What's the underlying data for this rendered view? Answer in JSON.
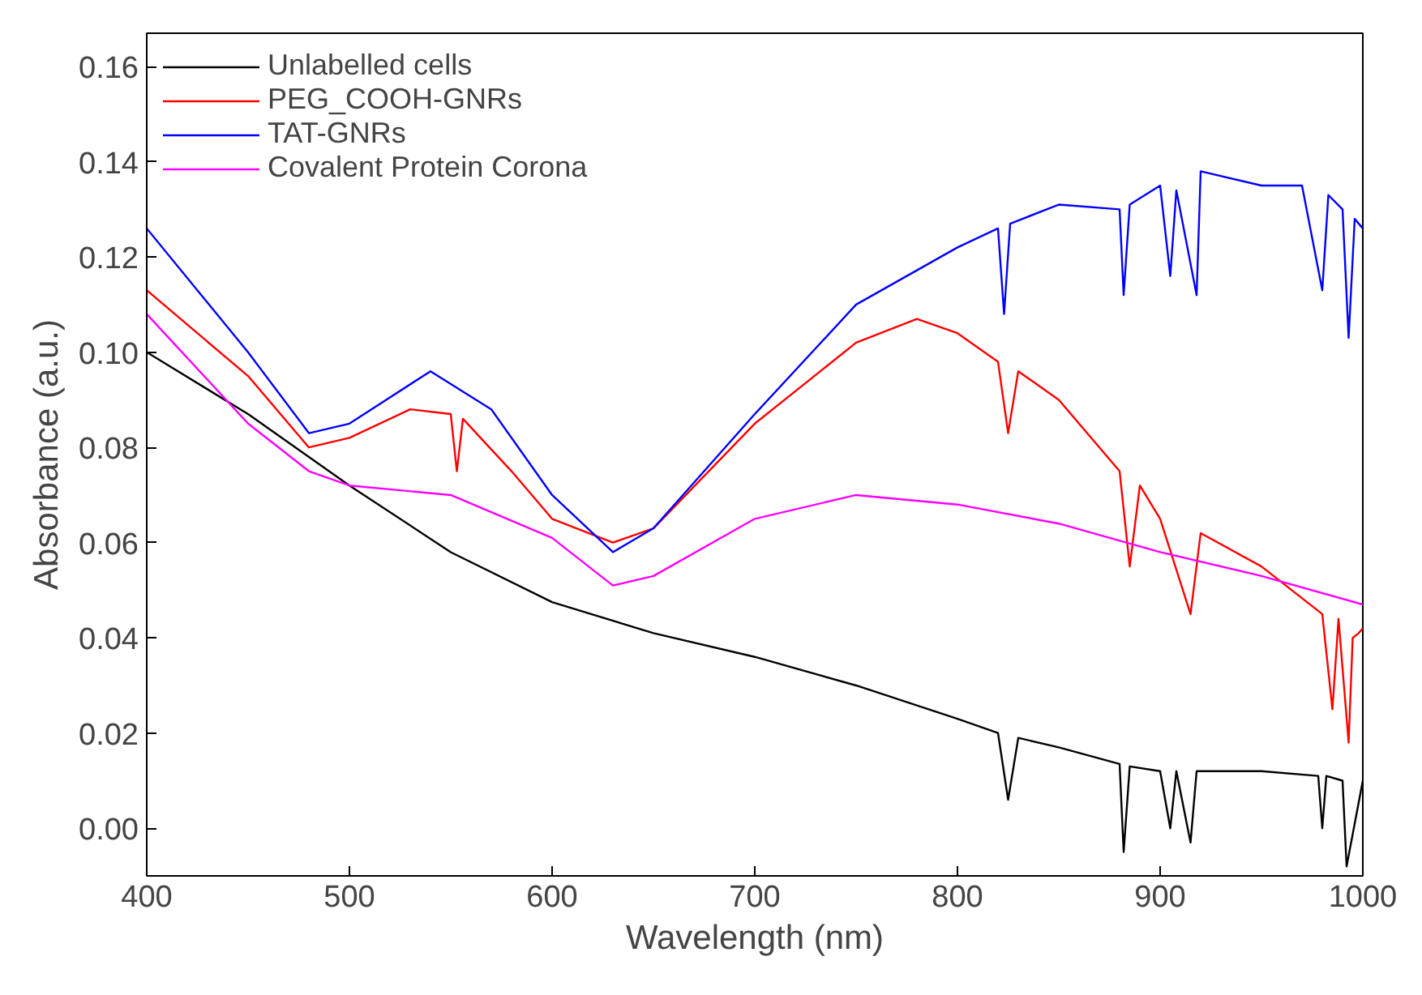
{
  "chart_data": {
    "type": "line",
    "xlabel": "Wavelength (nm)",
    "ylabel": "Absorbance (a.u.)",
    "xlim": [
      400,
      1000
    ],
    "ylim": [
      -0.01,
      0.167
    ],
    "xticks": [
      400,
      500,
      600,
      700,
      800,
      900,
      1000
    ],
    "yticks": [
      {
        "value": 0,
        "label": "0.00"
      },
      {
        "value": 0.02,
        "label": "0.02"
      },
      {
        "value": 0.04,
        "label": "0.04"
      },
      {
        "value": 0.06,
        "label": "0.06"
      },
      {
        "value": 0.08,
        "label": "0.08"
      },
      {
        "value": 0.1,
        "label": "0.10"
      },
      {
        "value": 0.12,
        "label": "0.12"
      },
      {
        "value": 0.14,
        "label": "0.14"
      },
      {
        "value": 0.16,
        "label": "0.16"
      }
    ],
    "grid": false,
    "legend": "top left",
    "marker": "none",
    "line_style": "solid",
    "series": [
      {
        "name": "Unlabelled cells",
        "color": "#000000",
        "x": [
          400,
          450,
          500,
          550,
          600,
          650,
          700,
          750,
          800,
          820,
          825,
          830,
          850,
          880,
          882,
          885,
          900,
          905,
          908,
          915,
          918,
          950,
          978,
          980,
          982,
          990,
          992,
          1000
        ],
        "values": [
          0.1,
          0.087,
          0.072,
          0.058,
          0.0475,
          0.041,
          0.036,
          0.03,
          0.023,
          0.02,
          0.006,
          0.019,
          0.017,
          0.0135,
          -0.005,
          0.013,
          0.012,
          0.0,
          0.012,
          -0.003,
          0.012,
          0.012,
          0.011,
          0.0,
          0.011,
          0.01,
          -0.008,
          0.01
        ]
      },
      {
        "name": "PEG_COOH-GNRs",
        "color": "#ff0000",
        "x": [
          400,
          450,
          480,
          500,
          530,
          550,
          553,
          556,
          580,
          600,
          630,
          650,
          700,
          750,
          780,
          800,
          820,
          825,
          830,
          850,
          880,
          885,
          890,
          900,
          915,
          920,
          950,
          980,
          985,
          988,
          993,
          995,
          998,
          1000
        ],
        "values": [
          0.113,
          0.095,
          0.08,
          0.082,
          0.088,
          0.087,
          0.075,
          0.086,
          0.075,
          0.065,
          0.06,
          0.063,
          0.085,
          0.102,
          0.107,
          0.104,
          0.098,
          0.083,
          0.096,
          0.09,
          0.075,
          0.055,
          0.072,
          0.065,
          0.045,
          0.062,
          0.055,
          0.045,
          0.025,
          0.044,
          0.018,
          0.04,
          0.041,
          0.042
        ]
      },
      {
        "name": "TAT-GNRs",
        "color": "#0000ff",
        "x": [
          400,
          450,
          480,
          500,
          540,
          570,
          600,
          630,
          650,
          700,
          750,
          800,
          820,
          823,
          826,
          850,
          880,
          882,
          885,
          900,
          905,
          908,
          918,
          920,
          950,
          970,
          980,
          983,
          990,
          993,
          996,
          1000
        ],
        "values": [
          0.126,
          0.1,
          0.083,
          0.085,
          0.096,
          0.088,
          0.07,
          0.058,
          0.063,
          0.087,
          0.11,
          0.122,
          0.126,
          0.108,
          0.127,
          0.131,
          0.13,
          0.112,
          0.131,
          0.135,
          0.116,
          0.134,
          0.112,
          0.138,
          0.135,
          0.135,
          0.113,
          0.133,
          0.13,
          0.103,
          0.128,
          0.126
        ]
      },
      {
        "name": "Covalent Protein Corona",
        "color": "#ff00ff",
        "x": [
          400,
          450,
          480,
          500,
          550,
          600,
          630,
          650,
          700,
          750,
          800,
          850,
          900,
          950,
          1000
        ],
        "values": [
          0.108,
          0.085,
          0.075,
          0.072,
          0.07,
          0.061,
          0.051,
          0.053,
          0.065,
          0.07,
          0.068,
          0.064,
          0.058,
          0.053,
          0.047
        ]
      }
    ]
  }
}
